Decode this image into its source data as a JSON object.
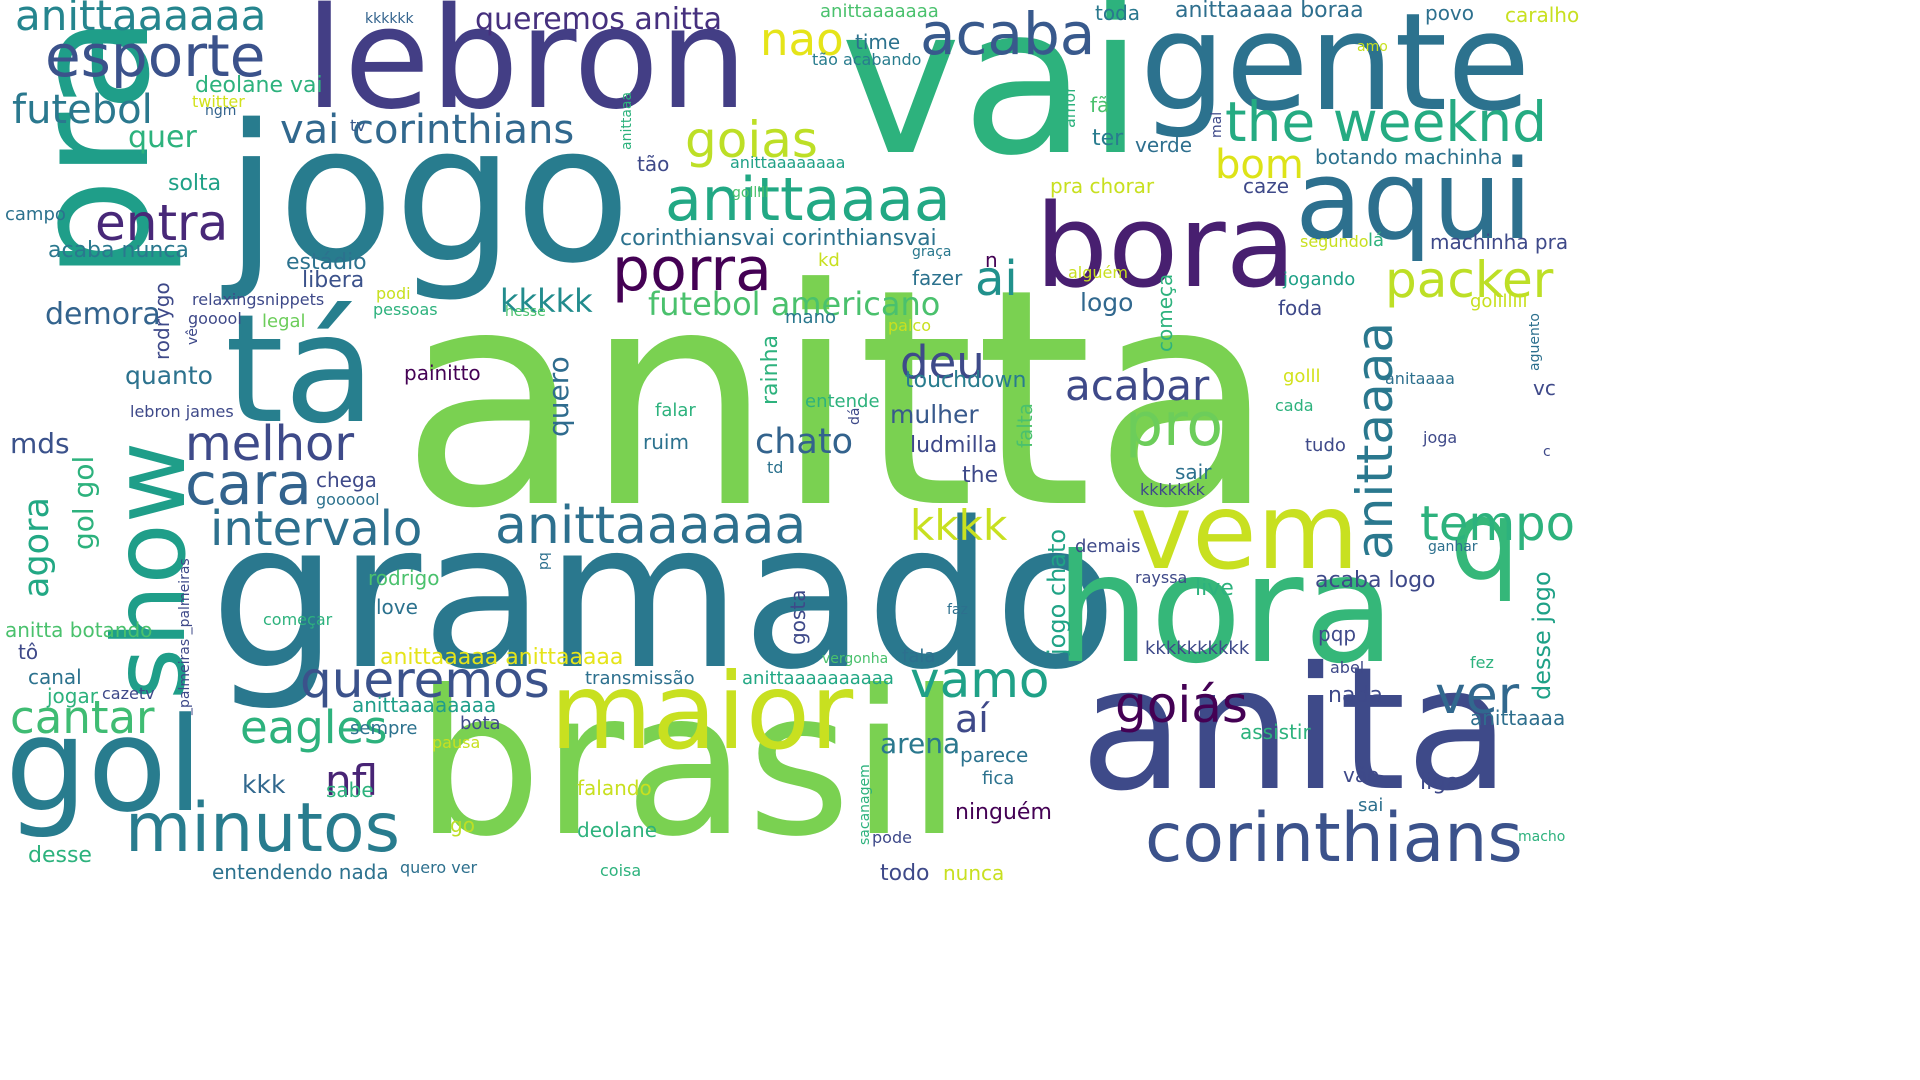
{
  "palette": [
    "#440154",
    "#46327e",
    "#365c8d",
    "#277f8e",
    "#1fa187",
    "#4ac16d",
    "#a0da39",
    "#fde725"
  ],
  "words": [
    "anitta",
    "vai",
    "gramado",
    "jogo",
    "brasil",
    "anita",
    "pra",
    "lebron",
    "gente",
    "tá",
    "hora",
    "show",
    "gol",
    "bora",
    "aqui",
    "maior",
    "vem",
    "q",
    "corinthians",
    "minutos",
    "esporte",
    "anittaaaaaa",
    "acaba",
    "nao",
    "queremos anitta",
    "futebol",
    "vai corinthians",
    "goias",
    "the weeknd",
    "anittaaaa",
    "entra",
    "porra",
    "bom",
    "ai",
    "packer",
    "futebol americano",
    "kkkkk",
    "demora",
    "deu",
    "melhor",
    "pro",
    "acabar",
    "cara",
    "intervalo",
    "anittaaaaaa",
    "kkkk",
    "tempo",
    "anittaaaa",
    "queremos",
    "vamo",
    "eagles",
    "ver",
    "goiás",
    "cantar",
    "aí",
    "nfl",
    "arena",
    "chato",
    "ludmilla",
    "mds",
    "gol gol",
    "agora",
    "quanto",
    "quero",
    "rainha",
    "touchdown",
    "mulher",
    "falta",
    "kkk",
    "jogo chato",
    "desse jogo",
    "anittaaaaa anittaaaaa",
    "anittaaaaaaaa",
    "anittaaaaaaaaaa",
    "anittaaaa",
    "acaba logo",
    "live",
    "kkkkkkkkkk",
    "corinthiansvai corinthiansvai",
    "machinha pra",
    "botando machinha",
    "anittaaaaaaaa",
    "anittaaaaa boraa",
    "anittaaaaaaa",
    "kkkkkk",
    "time",
    "tão acabando",
    "deolane vai",
    "twitter",
    "ngm",
    "tv",
    "mal",
    "amor",
    "fã",
    "ter",
    "verde",
    "toda",
    "povo",
    "caralho",
    "amo",
    "quer",
    "solta",
    "campo",
    "acaba nunca",
    "estádio",
    "libera",
    "rodrygo",
    "relaxingsnippets",
    "gooool",
    "legal",
    "vê",
    "podi",
    "pessoas",
    "hesse",
    "kd",
    "graça",
    "fazer",
    "n",
    "alguém",
    "segundo",
    "lá",
    "jogando",
    "golllllll",
    "foda",
    "logo",
    "mano",
    "palco",
    "começa",
    "aguento",
    "vc",
    "anitaaaa",
    "golll",
    "cada",
    "joga",
    "tudo",
    "c",
    "painitto",
    "lebron james",
    "entende",
    "dá",
    "falar",
    "ruim",
    "td",
    "the",
    "sair",
    "kkkkkkk",
    "chega",
    "goooool",
    "demais",
    "rayssa",
    "ganhar",
    "_palmeiras _palmeiras",
    "pq",
    "rodrigo",
    "love",
    "anitta botando",
    "começar",
    "faz",
    "tô",
    "canal",
    "jogar",
    "cazetv",
    "transmissão",
    "vergonha",
    "fala",
    "gosta",
    "pqp",
    "abel",
    "fez",
    "nada",
    "bota",
    "pausa",
    "sempre",
    "assistir",
    "parece",
    "vão",
    "liga",
    "fica",
    "sabe",
    "sacanagem",
    "pode",
    "go",
    "deolane",
    "falando",
    "sai",
    "macho",
    "desse",
    "entendendo nada",
    "todo",
    "nunca",
    "coisa",
    "quero ver",
    "tão",
    "golllll",
    "caze",
    "pra chorar",
    "anittaaa",
    "ninguém"
  ]
}
